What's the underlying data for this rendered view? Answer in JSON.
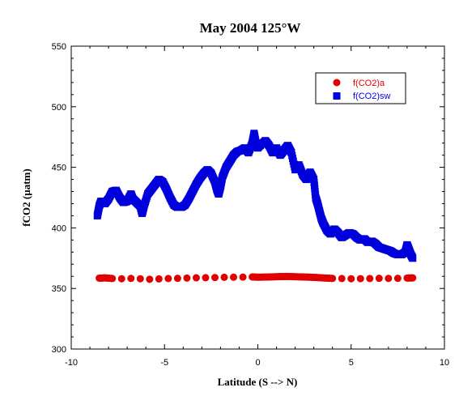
{
  "chart_data": {
    "type": "scatter",
    "title": "May 2004 125°W",
    "xlabel": "Latitude (S --> N)",
    "ylabel": "fCO2 (µatm)",
    "xlim": [
      -10,
      10
    ],
    "ylim": [
      300,
      550
    ],
    "x_ticks": [
      -10,
      -5,
      0,
      5,
      10
    ],
    "x_tick_labels": [
      "-10",
      "-5",
      "0",
      "5",
      "10"
    ],
    "y_ticks": [
      300,
      350,
      400,
      450,
      500,
      550
    ],
    "y_tick_labels": [
      "300",
      "350",
      "400",
      "450",
      "500",
      "550"
    ],
    "grid": false,
    "legend_position": "top-right",
    "series": [
      {
        "name": "f(CO2)a",
        "marker": "circle",
        "color": "#e00000",
        "points": [
          [
            -8.5,
            358.5
          ],
          [
            -8.2,
            358.7
          ],
          [
            -7.8,
            358.2
          ],
          [
            -7.3,
            358.0
          ],
          [
            -6.8,
            358.3
          ],
          [
            -6.3,
            358.0
          ],
          [
            -5.8,
            357.6
          ],
          [
            -5.3,
            357.9
          ],
          [
            -4.8,
            358.2
          ],
          [
            -4.3,
            358.4
          ],
          [
            -3.8,
            358.6
          ],
          [
            -3.3,
            358.8
          ],
          [
            -2.8,
            358.9
          ],
          [
            -2.3,
            359.0
          ],
          [
            -1.8,
            359.2
          ],
          [
            -1.3,
            359.3
          ],
          [
            -0.8,
            359.4
          ],
          [
            -0.3,
            359.5
          ],
          [
            0.0,
            359.3
          ],
          [
            0.4,
            359.4
          ],
          [
            0.8,
            359.6
          ],
          [
            1.2,
            359.8
          ],
          [
            1.6,
            359.9
          ],
          [
            2.0,
            359.7
          ],
          [
            2.4,
            359.5
          ],
          [
            2.8,
            359.3
          ],
          [
            3.2,
            359.0
          ],
          [
            3.6,
            358.6
          ],
          [
            4.0,
            358.3
          ],
          [
            4.5,
            358.2
          ],
          [
            5.0,
            358.0
          ],
          [
            5.5,
            358.1
          ],
          [
            6.0,
            358.2
          ],
          [
            6.5,
            358.4
          ],
          [
            7.0,
            358.3
          ],
          [
            7.5,
            358.4
          ],
          [
            8.0,
            358.6
          ],
          [
            8.3,
            358.7
          ]
        ]
      },
      {
        "name": "f(CO2)sw",
        "marker": "square",
        "color": "#0000dd",
        "points": [
          [
            -8.6,
            410
          ],
          [
            -8.5,
            418
          ],
          [
            -8.4,
            422
          ],
          [
            -8.2,
            420
          ],
          [
            -8.0,
            424
          ],
          [
            -7.8,
            430
          ],
          [
            -7.6,
            431
          ],
          [
            -7.4,
            425
          ],
          [
            -7.2,
            421
          ],
          [
            -7.0,
            422
          ],
          [
            -6.8,
            428
          ],
          [
            -6.7,
            424
          ],
          [
            -6.5,
            421
          ],
          [
            -6.3,
            418
          ],
          [
            -6.2,
            412
          ],
          [
            -6.1,
            418
          ],
          [
            -5.9,
            428
          ],
          [
            -5.7,
            432
          ],
          [
            -5.5,
            436
          ],
          [
            -5.3,
            440
          ],
          [
            -5.1,
            438
          ],
          [
            -4.9,
            432
          ],
          [
            -4.7,
            425
          ],
          [
            -4.5,
            419
          ],
          [
            -4.3,
            417
          ],
          [
            -4.1,
            417
          ],
          [
            -3.9,
            419
          ],
          [
            -3.7,
            424
          ],
          [
            -3.5,
            430
          ],
          [
            -3.3,
            436
          ],
          [
            -3.1,
            441
          ],
          [
            -2.9,
            445
          ],
          [
            -2.7,
            448
          ],
          [
            -2.5,
            445
          ],
          [
            -2.3,
            438
          ],
          [
            -2.2,
            432
          ],
          [
            -2.1,
            428
          ],
          [
            -2.0,
            434
          ],
          [
            -1.9,
            442
          ],
          [
            -1.7,
            450
          ],
          [
            -1.5,
            455
          ],
          [
            -1.3,
            460
          ],
          [
            -1.1,
            463
          ],
          [
            -0.9,
            464
          ],
          [
            -0.7,
            466
          ],
          [
            -0.5,
            462
          ],
          [
            -0.3,
            470
          ],
          [
            -0.2,
            478
          ],
          [
            -0.1,
            470
          ],
          [
            0.0,
            466
          ],
          [
            0.4,
            472
          ],
          [
            0.6,
            468
          ],
          [
            0.8,
            462
          ],
          [
            1.0,
            466
          ],
          [
            1.2,
            460
          ],
          [
            1.4,
            464
          ],
          [
            1.6,
            468
          ],
          [
            1.8,
            462
          ],
          [
            2.0,
            448
          ],
          [
            2.2,
            452
          ],
          [
            2.4,
            444
          ],
          [
            2.6,
            440
          ],
          [
            2.8,
            446
          ],
          [
            3.0,
            440
          ],
          [
            3.1,
            425
          ],
          [
            3.2,
            420
          ],
          [
            3.3,
            414
          ],
          [
            3.4,
            408
          ],
          [
            3.5,
            404
          ],
          [
            3.7,
            398
          ],
          [
            3.9,
            395
          ],
          [
            4.1,
            399
          ],
          [
            4.3,
            396
          ],
          [
            4.5,
            392
          ],
          [
            4.7,
            394
          ],
          [
            4.9,
            396
          ],
          [
            5.1,
            395
          ],
          [
            5.3,
            392
          ],
          [
            5.5,
            390
          ],
          [
            5.7,
            391
          ],
          [
            5.9,
            388
          ],
          [
            6.1,
            389
          ],
          [
            6.3,
            387
          ],
          [
            6.5,
            384
          ],
          [
            6.7,
            383
          ],
          [
            6.9,
            382
          ],
          [
            7.1,
            381
          ],
          [
            7.3,
            379
          ],
          [
            7.5,
            378
          ],
          [
            7.7,
            378
          ],
          [
            7.9,
            380
          ],
          [
            8.0,
            386
          ],
          [
            8.1,
            382
          ],
          [
            8.2,
            378
          ],
          [
            8.3,
            375
          ]
        ]
      }
    ]
  }
}
